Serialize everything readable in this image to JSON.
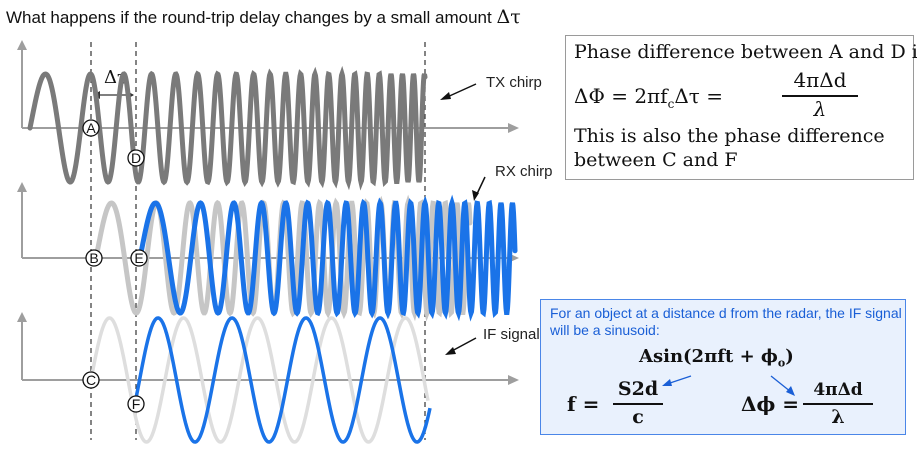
{
  "header": {
    "subtitle": "What happens if the round-trip delay changes by a small amount",
    "delta_tau_symbol": "Δτ"
  },
  "diagram": {
    "delta_tau_label": "Δτ",
    "tx_label": "TX chirp",
    "rx_label": "RX chirp",
    "if_label": "IF signal",
    "points": [
      "A",
      "B",
      "C",
      "D",
      "E",
      "F"
    ]
  },
  "phase_box": {
    "line1": "Phase difference between A and D  is",
    "equation_left": "ΔΦ = 2πf",
    "equation_sub": "c",
    "equation_mid": "Δτ =",
    "frac_num": "4πΔd",
    "frac_den": "λ",
    "line3": "This is also the phase difference",
    "line4": "between C and F"
  },
  "if_box": {
    "text": "For an object at a distance d from the radar, the IF signal will be a sinusoid:",
    "formula": "Asin(2πft + ϕ",
    "formula_sub": "o",
    "formula_end": ")",
    "f_lhs": "f =",
    "f_num": "S2d",
    "f_den": "c",
    "dphi_lhs": "Δϕ =",
    "dphi_num": "4πΔd",
    "dphi_den": "λ"
  },
  "colors": {
    "tx": "#7a7a7a",
    "rx_ghost": "#c6c6c6",
    "rx": "#1a73e8",
    "if_ghost": "#dedede",
    "if": "#1a73e8",
    "axis": "#9e9e9e"
  }
}
